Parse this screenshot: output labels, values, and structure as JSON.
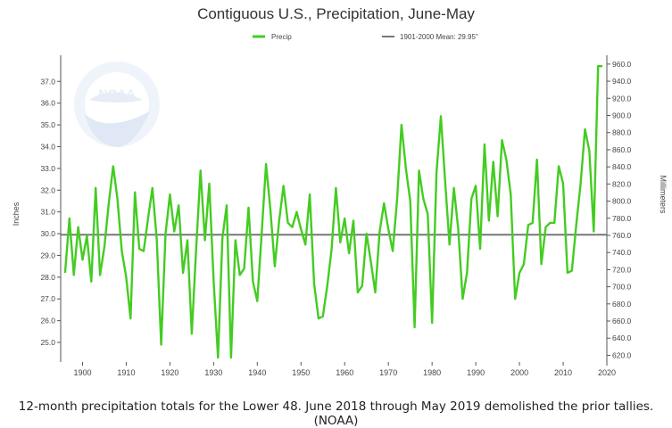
{
  "chart_data": {
    "type": "line",
    "title": "Contiguous U.S., Precipitation, June-May",
    "ylabel_left": "Inches",
    "ylabel_right": "Millimeters",
    "xlabel": "",
    "xlim": [
      1895,
      2020
    ],
    "ylim": [
      24.1,
      38.2
    ],
    "y_ticks": [
      "25.0",
      "26.0",
      "27.0",
      "28.0",
      "29.0",
      "30.0",
      "31.0",
      "32.0",
      "33.0",
      "34.0",
      "35.0",
      "36.0",
      "37.0"
    ],
    "y_tick_values": [
      25,
      26,
      27,
      28,
      29,
      30,
      31,
      32,
      33,
      34,
      35,
      36,
      37
    ],
    "y2_ticks": [
      "620.0",
      "640.0",
      "660.0",
      "680.0",
      "700.0",
      "720.0",
      "740.0",
      "760.0",
      "780.0",
      "800.0",
      "820.0",
      "840.0",
      "860.0",
      "880.0",
      "900.0",
      "920.0",
      "940.0",
      "960.0"
    ],
    "y2_tick_values_mm": [
      620,
      640,
      660,
      680,
      700,
      720,
      740,
      760,
      780,
      800,
      820,
      840,
      860,
      880,
      900,
      920,
      940,
      960
    ],
    "x_ticks": [
      "1900",
      "1910",
      "1920",
      "1930",
      "1940",
      "1950",
      "1960",
      "1970",
      "1980",
      "1990",
      "2000",
      "2010",
      "2020"
    ],
    "x_tick_values": [
      1900,
      1910,
      1920,
      1930,
      1940,
      1950,
      1960,
      1970,
      1980,
      1990,
      2000,
      2010,
      2020
    ],
    "legend": {
      "series_label": "Precip",
      "mean_label": "1901-2000 Mean: 29.95\"",
      "placement": "top-center"
    },
    "mean": 29.95,
    "series": [
      {
        "name": "Precip",
        "color": "#44cc22",
        "x": [
          1896,
          1897,
          1898,
          1899,
          1900,
          1901,
          1902,
          1903,
          1904,
          1905,
          1906,
          1907,
          1908,
          1909,
          1910,
          1911,
          1912,
          1913,
          1914,
          1915,
          1916,
          1917,
          1918,
          1919,
          1920,
          1921,
          1922,
          1923,
          1924,
          1925,
          1926,
          1927,
          1928,
          1929,
          1930,
          1931,
          1932,
          1933,
          1934,
          1935,
          1936,
          1937,
          1938,
          1939,
          1940,
          1941,
          1942,
          1943,
          1944,
          1945,
          1946,
          1947,
          1948,
          1949,
          1950,
          1951,
          1952,
          1953,
          1954,
          1955,
          1956,
          1957,
          1958,
          1959,
          1960,
          1961,
          1962,
          1963,
          1964,
          1965,
          1966,
          1967,
          1968,
          1969,
          1970,
          1971,
          1972,
          1973,
          1974,
          1975,
          1976,
          1977,
          1978,
          1979,
          1980,
          1981,
          1982,
          1983,
          1984,
          1985,
          1986,
          1987,
          1988,
          1989,
          1990,
          1991,
          1992,
          1993,
          1994,
          1995,
          1996,
          1997,
          1998,
          1999,
          2000,
          2001,
          2002,
          2003,
          2004,
          2005,
          2006,
          2007,
          2008,
          2009,
          2010,
          2011,
          2012,
          2013,
          2014,
          2015,
          2016,
          2017,
          2018,
          2019
        ],
        "values": [
          28.2,
          30.7,
          28.1,
          30.3,
          28.8,
          29.9,
          27.8,
          32.1,
          28.1,
          29.4,
          31.4,
          33.1,
          31.6,
          29.2,
          28.0,
          26.1,
          31.9,
          29.3,
          29.2,
          30.7,
          32.1,
          29.7,
          24.9,
          30.0,
          31.8,
          30.1,
          31.3,
          28.2,
          29.7,
          25.4,
          29.3,
          32.9,
          29.7,
          32.3,
          27.8,
          24.3,
          29.8,
          31.3,
          24.3,
          29.7,
          28.1,
          28.4,
          31.2,
          27.8,
          26.9,
          30.0,
          33.2,
          31.1,
          28.5,
          30.6,
          32.2,
          30.5,
          30.3,
          31.0,
          30.2,
          29.5,
          31.8,
          27.7,
          26.1,
          26.2,
          27.6,
          29.3,
          32.1,
          29.6,
          30.7,
          29.1,
          30.6,
          27.3,
          27.6,
          30.0,
          28.7,
          27.3,
          30.1,
          31.4,
          30.2,
          29.2,
          31.6,
          35.0,
          33.0,
          31.5,
          25.7,
          32.9,
          31.6,
          30.9,
          25.9,
          32.8,
          35.4,
          32.4,
          29.5,
          32.1,
          30.2,
          27.0,
          28.2,
          31.6,
          32.2,
          29.3,
          34.1,
          30.6,
          33.3,
          30.8,
          34.3,
          33.4,
          31.8,
          27.0,
          28.2,
          28.6,
          30.4,
          30.5,
          33.4,
          28.6,
          30.3,
          30.5,
          30.5,
          33.1,
          32.3,
          28.2,
          28.3,
          30.4,
          32.3,
          34.8,
          33.8,
          30.1,
          37.7,
          37.7
        ]
      }
    ]
  },
  "caption": "12-month precipitation totals for the Lower 48. June 2018 through May 2019 demolished the prior tallies. (NOAA)",
  "logo_text": "NOAA",
  "colors": {
    "series": "#44cc22",
    "mean_line": "#777777",
    "axis": "#555555",
    "label": "#444444"
  }
}
